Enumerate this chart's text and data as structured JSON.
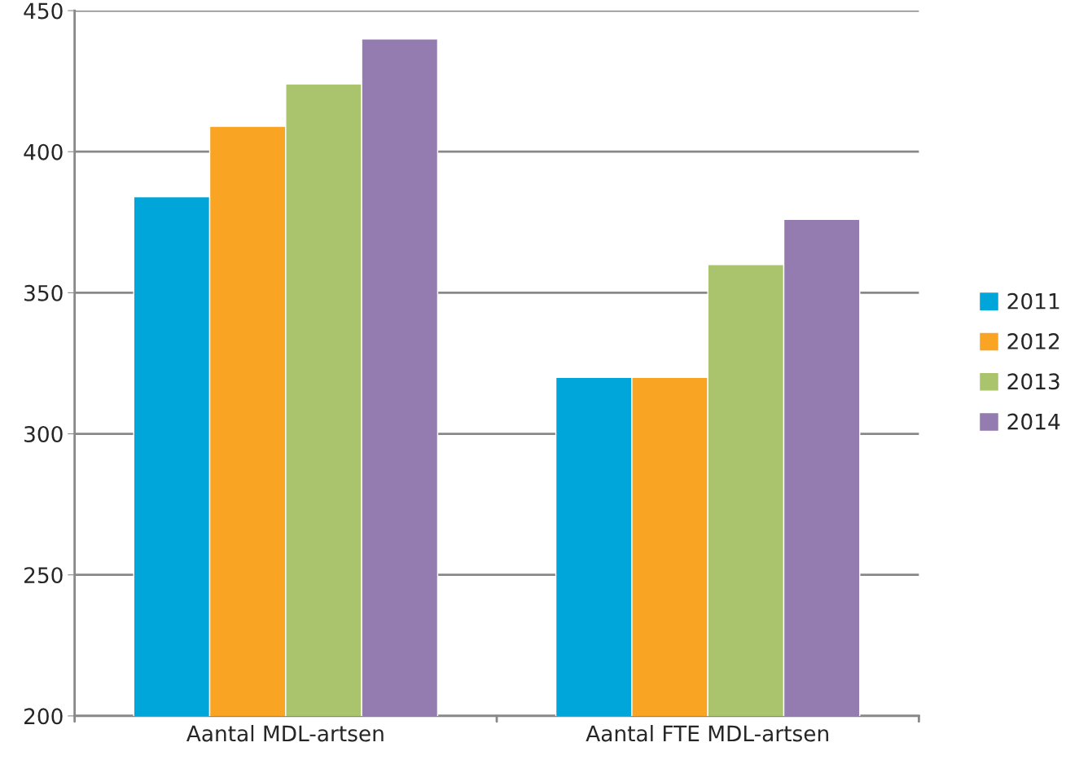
{
  "chart_data": {
    "type": "bar",
    "categories": [
      "Aantal MDL-artsen",
      "Aantal FTE MDL-artsen"
    ],
    "series": [
      {
        "name": "2011",
        "color": "#00a6d9",
        "values": [
          384,
          320
        ]
      },
      {
        "name": "2012",
        "color": "#f9a523",
        "values": [
          409,
          320
        ]
      },
      {
        "name": "2013",
        "color": "#a9c46c",
        "values": [
          424,
          360
        ]
      },
      {
        "name": "2014",
        "color": "#947cb0",
        "values": [
          440,
          376
        ]
      }
    ],
    "ylim": [
      200,
      450
    ],
    "yticks": [
      200,
      250,
      300,
      350,
      400,
      450
    ],
    "grid": "y",
    "legend": "right"
  }
}
